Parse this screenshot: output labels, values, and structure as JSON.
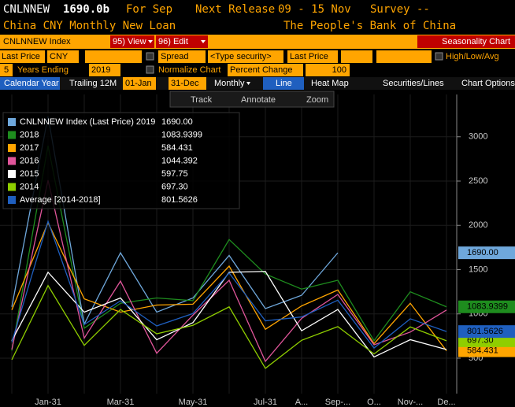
{
  "header": {
    "ticker": "CNLNNEW",
    "value": "1690.0b",
    "period": "For Sep",
    "next_release": "Next Release",
    "release_dates": "09 - 15 Nov",
    "survey": "Survey --",
    "description": "China CNY Monthly New Loan",
    "source": "The People's Bank of China"
  },
  "toolbar": {
    "security": "CNLNNEW Index",
    "view": "95) View",
    "edit": "96) Edit",
    "mode": "Seasonality Chart",
    "field": "Last Price",
    "currency": "CNY",
    "spread": "Spread",
    "type_security": "<Type security>",
    "field2": "Last Price",
    "high_low_avg": "High/Low/Avg",
    "years": "5",
    "years_ending": "Years Ending",
    "year": "2019",
    "normalize": "Normalize Chart",
    "percent_change": "Percent Change",
    "base": "100",
    "calendar_year": "Calendar Year",
    "trailing": "Trailing 12M",
    "start": "01-Jan",
    "end": "31-Dec",
    "monthly": "Monthly",
    "line": "Line",
    "heat_map": "Heat Map",
    "securities": "Securities/Lines",
    "chart_options": "Chart Options",
    "track": "Track",
    "annotate": "Annotate",
    "zoom": "Zoom"
  },
  "chart_data": {
    "type": "line",
    "categories": [
      null,
      "Jan-31",
      null,
      "Mar-31",
      null,
      "May-31",
      null,
      "Jul-31",
      "A...",
      "Sep-...",
      "O...",
      "Nov-...",
      "De..."
    ],
    "ylim": [
      100,
      3300
    ],
    "yticks": [
      500,
      1000,
      1500,
      2000,
      2500,
      3000
    ],
    "grid": true,
    "series": [
      {
        "name": "CNLNNEW Index (Last Price) 2019",
        "label": "1690.00",
        "color": "#6fa8dc",
        "tag": true,
        "values": [
          1080,
          3230,
          885,
          1690,
          1020,
          1180,
          1660,
          1060,
          1210,
          1690,
          null,
          null,
          null
        ]
      },
      {
        "name": "2018",
        "label": "1083.9399",
        "color": "#1e8c1e",
        "tag": true,
        "values": [
          584,
          2900,
          839,
          1120,
          1180,
          1150,
          1840,
          1450,
          1280,
          1380,
          697,
          1250,
          1080
        ]
      },
      {
        "name": "2017",
        "label": "584.431",
        "color": "#ffa500",
        "tag": true,
        "values": [
          1044,
          2030,
          1170,
          1020,
          1100,
          1110,
          1540,
          826,
          1090,
          1270,
          664,
          1120,
          584
        ]
      },
      {
        "name": "2016",
        "label": "1044.392",
        "color": "#e0559a",
        "tag": false,
        "values": [
          598,
          2510,
          727,
          1370,
          556,
          986,
          1380,
          464,
          949,
          1220,
          651,
          795,
          1044
        ]
      },
      {
        "name": "2015",
        "label": "597.75",
        "color": "#ffffff",
        "tag": false,
        "values": [
          697,
          1470,
          1020,
          1180,
          708,
          901,
          1470,
          1480,
          810,
          1050,
          514,
          709,
          598
        ]
      },
      {
        "name": "2014",
        "label": "697.30",
        "color": "#8fce00",
        "tag": true,
        "values": [
          482,
          1320,
          645,
          1050,
          775,
          871,
          1080,
          385,
          702,
          857,
          548,
          853,
          697
        ]
      },
      {
        "name": "Average [2014-2018]",
        "label": "801.5626",
        "color": "#1f5fbf",
        "tag": true,
        "values": [
          681,
          2046,
          880,
          1148,
          864,
          1004,
          1462,
          922,
          966,
          1155,
          615,
          945,
          801
        ]
      }
    ]
  }
}
